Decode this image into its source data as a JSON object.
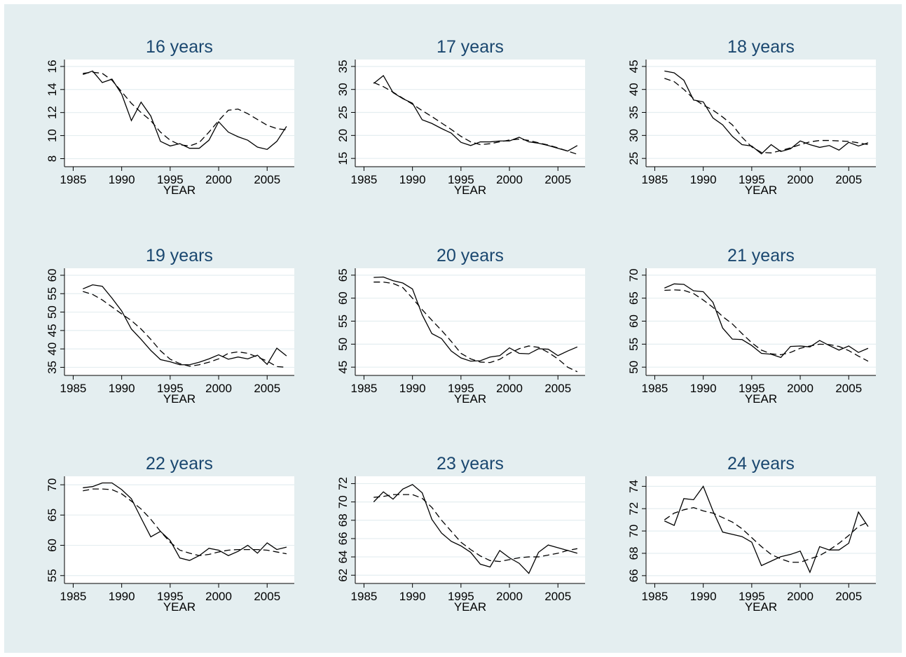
{
  "chart_data": [
    {
      "type": "line",
      "title": "16 years",
      "x_label": "YEAR",
      "x": [
        1986,
        1987,
        1988,
        1989,
        1990,
        1991,
        1992,
        1993,
        1994,
        1995,
        1996,
        1997,
        1998,
        1999,
        2000,
        2001,
        2002,
        2003,
        2004,
        2005,
        2006,
        2007
      ],
      "series": [
        {
          "color": "#000000",
          "dash": false,
          "values": [
            15.3,
            15.6,
            14.6,
            14.9,
            13.6,
            11.3,
            12.9,
            11.7,
            9.5,
            9.1,
            9.3,
            8.9,
            8.9,
            9.6,
            11.2,
            10.3,
            9.9,
            9.6,
            9.0,
            8.8,
            9.5,
            10.8
          ]
        },
        {
          "color": "#000000",
          "dash": true,
          "values": [
            15.4,
            15.5,
            15.4,
            14.8,
            13.8,
            12.8,
            12.0,
            11.3,
            10.3,
            9.6,
            9.2,
            9.1,
            9.4,
            10.3,
            11.3,
            12.2,
            12.3,
            11.9,
            11.4,
            10.9,
            10.6,
            10.5
          ]
        }
      ],
      "xlim": [
        1984.1,
        2007.8
      ],
      "xticks": [
        1985,
        1990,
        1995,
        2000,
        2005
      ],
      "ylim": [
        7.3,
        16.6
      ],
      "yticks": [
        8,
        10,
        12,
        14,
        16
      ],
      "grid": true
    },
    {
      "type": "line",
      "title": "17 years",
      "x_label": "YEAR",
      "x": [
        1986,
        1987,
        1988,
        1989,
        1990,
        1991,
        1992,
        1993,
        1994,
        1995,
        1996,
        1997,
        1998,
        1999,
        2000,
        2001,
        2002,
        2003,
        2004,
        2005,
        2006,
        2007
      ],
      "series": [
        {
          "color": "#000000",
          "dash": false,
          "values": [
            31.3,
            33,
            29.3,
            28,
            27,
            23.4,
            22.6,
            21.5,
            20.5,
            18.5,
            17.8,
            18.6,
            18.6,
            18.8,
            18.8,
            19.6,
            18.6,
            18.3,
            17.8,
            17.2,
            16.6,
            17.8
          ]
        },
        {
          "color": "#000000",
          "dash": true,
          "values": [
            31.5,
            30.6,
            29.4,
            28.1,
            26.8,
            25.4,
            24.1,
            22.7,
            21.3,
            19.8,
            18.6,
            18.0,
            18.2,
            18.6,
            19.0,
            19.2,
            18.9,
            18.4,
            17.9,
            17.3,
            16.6,
            15.9
          ]
        }
      ],
      "xlim": [
        1984.1,
        2007.8
      ],
      "xticks": [
        1985,
        1990,
        1995,
        2000,
        2005
      ],
      "ylim": [
        13.2,
        36.5
      ],
      "yticks": [
        15,
        20,
        25,
        30,
        35
      ],
      "grid": true
    },
    {
      "type": "line",
      "title": "18 years",
      "x_label": "YEAR",
      "x": [
        1986,
        1987,
        1988,
        1989,
        1990,
        1991,
        1992,
        1993,
        1994,
        1995,
        1996,
        1997,
        1998,
        1999,
        2000,
        2001,
        2002,
        2003,
        2004,
        2005,
        2006,
        2007
      ],
      "series": [
        {
          "color": "#000000",
          "dash": false,
          "values": [
            44,
            43.6,
            42,
            37.7,
            37.3,
            33.8,
            32.3,
            29.8,
            28,
            27.7,
            26,
            28,
            26.5,
            27.1,
            28.8,
            28,
            27.4,
            27.8,
            26.8,
            28.5,
            27.7,
            28.4
          ]
        },
        {
          "color": "#000000",
          "dash": true,
          "values": [
            42.4,
            41.7,
            40,
            38,
            36.6,
            35.5,
            34,
            32.3,
            29.6,
            27.5,
            26.3,
            26.2,
            26.7,
            27.3,
            28,
            28.6,
            28.9,
            28.9,
            28.8,
            28.7,
            28.4,
            28.0
          ]
        }
      ],
      "xlim": [
        1984.1,
        2007.8
      ],
      "xticks": [
        1985,
        1990,
        1995,
        2000,
        2005
      ],
      "ylim": [
        23.2,
        46.5
      ],
      "yticks": [
        25,
        30,
        35,
        40,
        45
      ],
      "grid": true
    },
    {
      "type": "line",
      "title": "19 years",
      "x_label": "YEAR",
      "x": [
        1986,
        1987,
        1988,
        1989,
        1990,
        1991,
        1992,
        1993,
        1994,
        1995,
        1996,
        1997,
        1998,
        1999,
        2000,
        2001,
        2002,
        2003,
        2004,
        2005,
        2006,
        2007
      ],
      "series": [
        {
          "color": "#000000",
          "dash": false,
          "values": [
            56.3,
            57.4,
            57,
            53.8,
            50.3,
            45.4,
            42.6,
            39.6,
            37.1,
            36.5,
            35.7,
            35.7,
            36.4,
            37.3,
            38.4,
            37.2,
            37.8,
            37.3,
            38.3,
            35.8,
            40.2,
            38.1
          ]
        },
        {
          "color": "#000000",
          "dash": true,
          "values": [
            55.6,
            54.8,
            53.3,
            51.4,
            49.5,
            47.7,
            45.4,
            42.6,
            39.5,
            37.2,
            36.0,
            35.3,
            35.7,
            36.4,
            37.3,
            38.8,
            39.2,
            38.8,
            37.8,
            36.7,
            35.2,
            35.0
          ]
        }
      ],
      "xlim": [
        1984.1,
        2007.8
      ],
      "xticks": [
        1985,
        1990,
        1995,
        2000,
        2005
      ],
      "ylim": [
        32.8,
        61.9
      ],
      "yticks": [
        35,
        40,
        45,
        50,
        55,
        60
      ],
      "grid": true
    },
    {
      "type": "line",
      "title": "20 years",
      "x_label": "YEAR",
      "x": [
        1986,
        1987,
        1988,
        1989,
        1990,
        1991,
        1992,
        1993,
        1994,
        1995,
        1996,
        1997,
        1998,
        1999,
        2000,
        2001,
        2002,
        2003,
        2004,
        2005,
        2006,
        2007
      ],
      "series": [
        {
          "color": "#000000",
          "dash": false,
          "values": [
            64.5,
            64.6,
            63.8,
            63.3,
            62,
            56.4,
            52.3,
            51.2,
            48.5,
            47,
            46.3,
            46.4,
            47.2,
            47.5,
            49.2,
            48,
            47.9,
            49,
            48.9,
            47.5,
            48.5,
            49.4
          ]
        },
        {
          "color": "#000000",
          "dash": true,
          "values": [
            63.5,
            63.5,
            63.2,
            62.3,
            60,
            57.5,
            55.2,
            53,
            50.6,
            48,
            46.8,
            46.1,
            46.0,
            46.7,
            48.0,
            49.0,
            49.6,
            49.3,
            48.2,
            46.8,
            45.0,
            44.0
          ]
        }
      ],
      "xlim": [
        1984.1,
        2007.8
      ],
      "xticks": [
        1985,
        1990,
        1995,
        2000,
        2005
      ],
      "ylim": [
        43.2,
        66.5
      ],
      "yticks": [
        45,
        50,
        55,
        60,
        65
      ],
      "grid": true
    },
    {
      "type": "line",
      "title": "21 years",
      "x_label": "YEAR",
      "x": [
        1986,
        1987,
        1988,
        1989,
        1990,
        1991,
        1992,
        1993,
        1994,
        1995,
        1996,
        1997,
        1998,
        1999,
        2000,
        2001,
        2002,
        2003,
        2004,
        2005,
        2006,
        2007
      ],
      "series": [
        {
          "color": "#000000",
          "dash": false,
          "values": [
            67.2,
            68.1,
            68,
            66.6,
            66.4,
            64.1,
            58.5,
            56.1,
            56,
            54.7,
            53,
            52.8,
            52.1,
            54.5,
            54.6,
            54.4,
            55.8,
            54.7,
            53.7,
            54.6,
            53.2,
            54.1
          ]
        },
        {
          "color": "#000000",
          "dash": true,
          "values": [
            66.7,
            66.8,
            66.7,
            66,
            64.6,
            63,
            61,
            59.4,
            57.3,
            55.3,
            53.7,
            52.9,
            52.7,
            53.2,
            54.1,
            54.6,
            55.0,
            54.9,
            54.5,
            53.6,
            52.4,
            51.3
          ]
        }
      ],
      "xlim": [
        1984.1,
        2007.8
      ],
      "xticks": [
        1985,
        1990,
        1995,
        2000,
        2005
      ],
      "ylim": [
        48.2,
        71.5
      ],
      "yticks": [
        50,
        55,
        60,
        65,
        70
      ],
      "grid": true
    },
    {
      "type": "line",
      "title": "22 years",
      "x_label": "YEAR",
      "x": [
        1986,
        1987,
        1988,
        1989,
        1990,
        1991,
        1992,
        1993,
        1994,
        1995,
        1996,
        1997,
        1998,
        1999,
        2000,
        2001,
        2002,
        2003,
        2004,
        2005,
        2006,
        2007
      ],
      "series": [
        {
          "color": "#000000",
          "dash": false,
          "values": [
            69.5,
            69.7,
            70.3,
            70.3,
            69.2,
            67.7,
            64.5,
            61.4,
            62.3,
            60.8,
            57.9,
            57.5,
            58.3,
            59.5,
            59.2,
            58.3,
            59,
            60,
            58.7,
            60.4,
            59.3,
            59.7
          ]
        },
        {
          "color": "#000000",
          "dash": true,
          "values": [
            69,
            69.3,
            69.3,
            69.2,
            68.5,
            67.3,
            66,
            64.3,
            62.3,
            60.5,
            59.2,
            58.7,
            58.3,
            58.5,
            58.9,
            59.2,
            59.3,
            59.3,
            59.3,
            59.2,
            58.9,
            58.6
          ]
        }
      ],
      "xlim": [
        1984.1,
        2007.8
      ],
      "xticks": [
        1985,
        1990,
        1995,
        2000,
        2005
      ],
      "ylim": [
        53.7,
        71.4
      ],
      "yticks": [
        55,
        60,
        65,
        70
      ],
      "grid": true
    },
    {
      "type": "line",
      "title": "23 years",
      "x_label": "YEAR",
      "x": [
        1986,
        1987,
        1988,
        1989,
        1990,
        1991,
        1992,
        1993,
        1994,
        1995,
        1996,
        1997,
        1998,
        1999,
        2000,
        2001,
        2002,
        2003,
        2004,
        2005,
        2006,
        2007
      ],
      "series": [
        {
          "color": "#000000",
          "dash": false,
          "values": [
            70,
            71.1,
            70.3,
            71.4,
            71.9,
            71,
            68.1,
            66.6,
            65.7,
            65.2,
            64.5,
            63.2,
            62.9,
            64.7,
            63.9,
            63.3,
            62.2,
            64.5,
            65.3,
            65,
            64.7,
            64.4
          ]
        },
        {
          "color": "#000000",
          "dash": true,
          "values": [
            70.5,
            70.6,
            70.8,
            70.8,
            70.8,
            70.4,
            69.4,
            68,
            66.8,
            65.6,
            64.8,
            64.1,
            63.6,
            63.5,
            63.7,
            63.9,
            64.0,
            64.0,
            64.2,
            64.4,
            64.7,
            64.9
          ]
        }
      ],
      "xlim": [
        1984.1,
        2007.8
      ],
      "xticks": [
        1985,
        1990,
        1995,
        2000,
        2005
      ],
      "ylim": [
        61.1,
        72.8
      ],
      "yticks": [
        62,
        64,
        66,
        68,
        70,
        72
      ],
      "grid": true
    },
    {
      "type": "line",
      "title": "24 years",
      "x_label": "YEAR",
      "x": [
        1986,
        1987,
        1988,
        1989,
        1990,
        1991,
        1992,
        1993,
        1994,
        1995,
        1996,
        1997,
        1998,
        1999,
        2000,
        2001,
        2002,
        2003,
        2004,
        2005,
        2006,
        2007
      ],
      "series": [
        {
          "color": "#000000",
          "dash": false,
          "values": [
            70.9,
            70.5,
            72.9,
            72.8,
            74,
            71.8,
            69.9,
            69.7,
            69.5,
            69,
            66.9,
            67.3,
            67.7,
            67.9,
            68.2,
            66.3,
            68.6,
            68.3,
            68.3,
            68.9,
            71.7,
            70.4
          ]
        },
        {
          "color": "#000000",
          "dash": true,
          "values": [
            71,
            71.6,
            71.9,
            72.1,
            71.8,
            71.6,
            71.2,
            70.8,
            70.2,
            69.4,
            68.6,
            67.9,
            67.5,
            67.2,
            67.2,
            67.5,
            67.8,
            68.3,
            68.9,
            69.6,
            70.4,
            70.8
          ]
        }
      ],
      "xlim": [
        1984.1,
        2007.8
      ],
      "xticks": [
        1985,
        1990,
        1995,
        2000,
        2005
      ],
      "ylim": [
        65.3,
        74.9
      ],
      "yticks": [
        66,
        68,
        70,
        72,
        74
      ],
      "grid": true
    }
  ]
}
